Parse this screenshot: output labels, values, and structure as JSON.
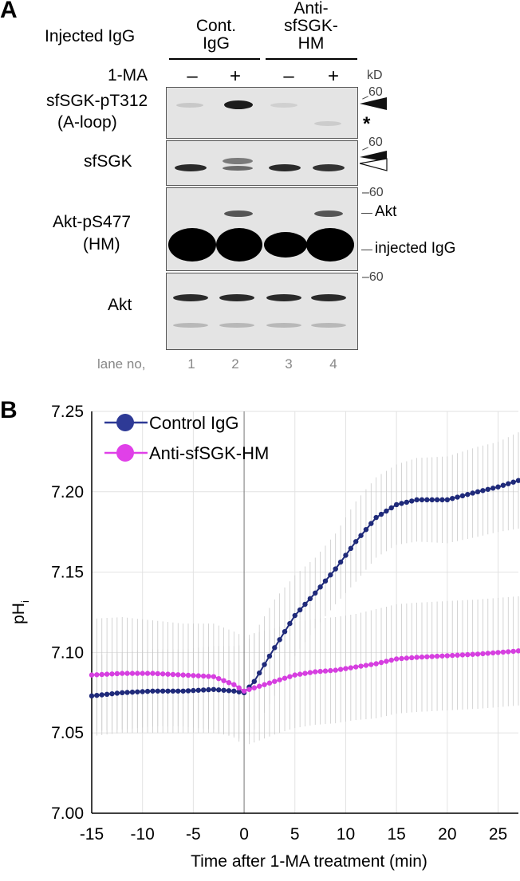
{
  "panel_a": {
    "letter": "A",
    "injected_label": "Injected IgG",
    "group_1": [
      "Cont.",
      "IgG"
    ],
    "group_2": [
      "Anti-",
      "sfSGK-",
      "HM"
    ],
    "treatment_label": "1-MA",
    "treatment_signs": [
      "–",
      "+",
      "–",
      "+"
    ],
    "kd_label": "kD",
    "marker_60": "60",
    "marker_dash_60": "–60",
    "blot_labels": {
      "b1_line1": "sfSGK-pT312",
      "b1_line2": "(A-loop)",
      "b2": "sfSGK",
      "b3_line1": "Akt-pS477",
      "b3_line2": "(HM)",
      "b4": "Akt"
    },
    "band_labels": {
      "star": "*",
      "akt": "Akt",
      "injected": "injected IgG"
    },
    "lane_label": "lane no,",
    "lane_numbers": [
      "1",
      "2",
      "3",
      "4"
    ]
  },
  "panel_b": {
    "letter": "B"
  },
  "chart_data": {
    "type": "line",
    "xlabel": "Time after 1-MA treatment (min)",
    "ylabel": "pH",
    "ylabel_sub": "i",
    "xlim": [
      -15,
      27
    ],
    "ylim": [
      7.0,
      7.25
    ],
    "x_ticks": [
      -15,
      -10,
      -5,
      0,
      5,
      10,
      15,
      20,
      25
    ],
    "x_tick_labels": [
      "-15",
      "-10",
      "-5",
      "0",
      "5",
      "10",
      "15",
      "20",
      "25"
    ],
    "y_ticks": [
      7.0,
      7.05,
      7.1,
      7.15,
      7.2,
      7.25
    ],
    "y_tick_labels": [
      "7.00",
      "7.05",
      "7.10",
      "7.15",
      "7.20",
      "7.25"
    ],
    "grid": true,
    "legend_position": "top-left",
    "vertical_reference_x": 0,
    "series": [
      {
        "name": "Control IgG",
        "color": "#1f2a7a",
        "legend_color": "#2e3a96",
        "x": [
          -15,
          -12,
          -9,
          -6,
          -3,
          -1,
          0,
          1,
          3,
          5,
          7,
          9,
          11,
          13,
          15,
          17,
          20,
          23,
          25,
          27
        ],
        "y": [
          7.073,
          7.075,
          7.076,
          7.076,
          7.077,
          7.076,
          7.075,
          7.082,
          7.103,
          7.123,
          7.137,
          7.152,
          7.169,
          7.184,
          7.192,
          7.195,
          7.195,
          7.2,
          7.203,
          7.207
        ],
        "err": [
          0.025,
          0.025,
          0.026,
          0.026,
          0.027,
          0.028,
          0.03,
          0.03,
          0.03,
          0.025,
          0.022,
          0.022,
          0.025,
          0.025,
          0.025,
          0.026,
          0.027,
          0.028,
          0.028,
          0.03
        ]
      },
      {
        "name": "Anti-sfSGK-HM",
        "color": "#d63fe0",
        "legend_color": "#e040e8",
        "x": [
          -15,
          -12,
          -9,
          -6,
          -3,
          -1,
          0,
          1,
          3,
          5,
          7,
          9,
          11,
          13,
          15,
          17,
          20,
          23,
          25,
          27
        ],
        "y": [
          7.086,
          7.087,
          7.087,
          7.086,
          7.085,
          7.08,
          7.076,
          7.078,
          7.082,
          7.086,
          7.088,
          7.089,
          7.091,
          7.093,
          7.096,
          7.097,
          7.098,
          7.099,
          7.1,
          7.101
        ],
        "err": [
          0.035,
          0.035,
          0.033,
          0.032,
          0.033,
          0.033,
          0.034,
          0.034,
          0.033,
          0.033,
          0.033,
          0.033,
          0.033,
          0.034,
          0.034,
          0.034,
          0.034,
          0.034,
          0.034,
          0.034
        ]
      }
    ]
  }
}
